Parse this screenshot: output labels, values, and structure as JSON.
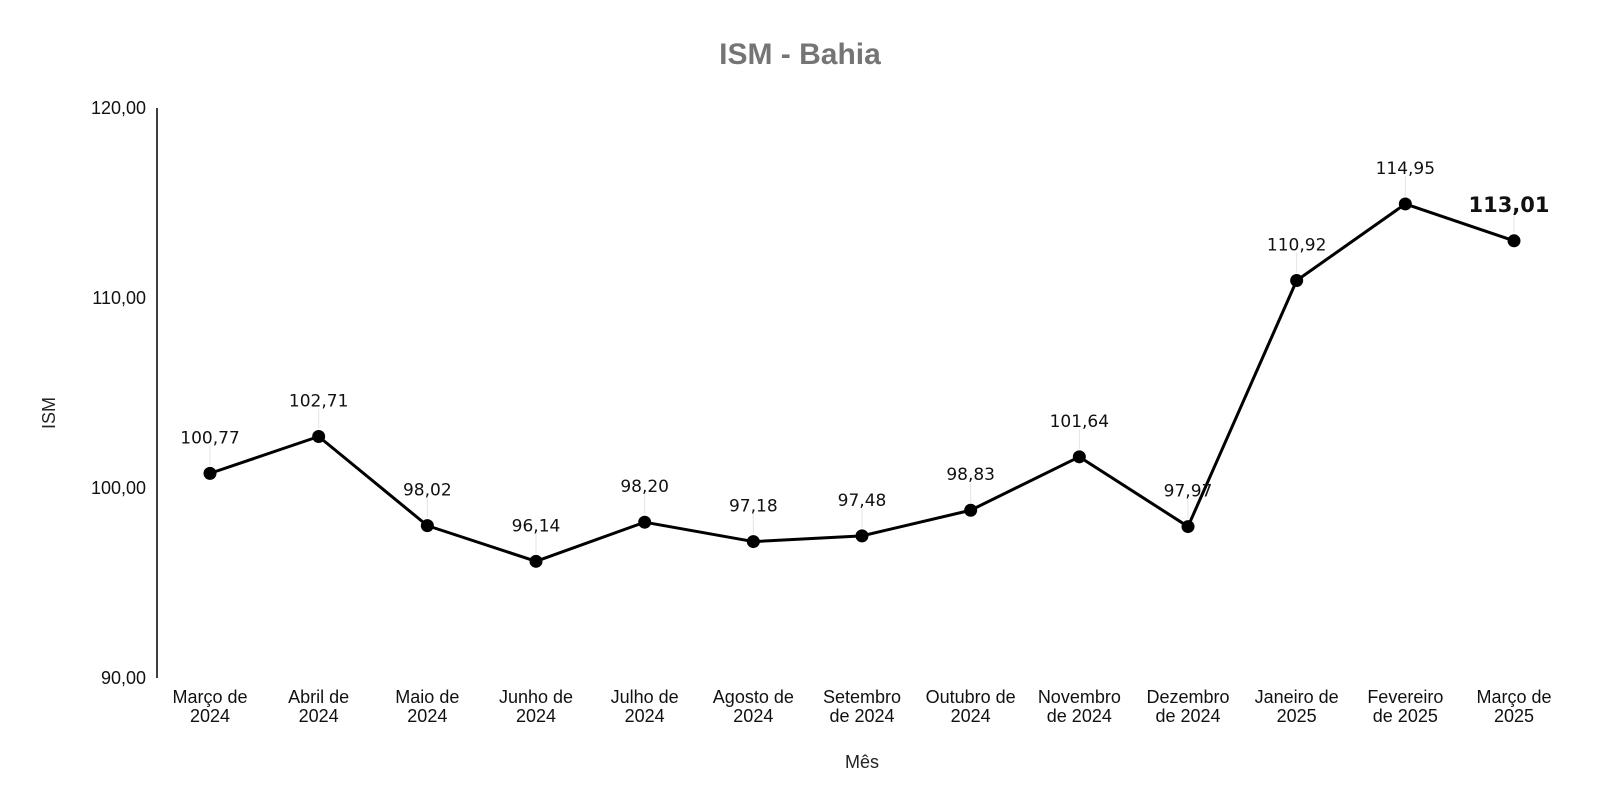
{
  "chart_data": {
    "type": "line",
    "title": "ISM - Bahia",
    "xlabel": "Mês",
    "ylabel": "ISM",
    "ylim": [
      90,
      120
    ],
    "yticks": [
      "120,00",
      "110,00",
      "100,00",
      "90,00"
    ],
    "ytick_values": [
      120,
      110,
      100,
      90
    ],
    "categories": [
      [
        "Março de",
        "2024"
      ],
      [
        "Abril de",
        "2024"
      ],
      [
        "Maio de",
        "2024"
      ],
      [
        "Junho de",
        "2024"
      ],
      [
        "Julho de",
        "2024"
      ],
      [
        "Agosto de",
        "2024"
      ],
      [
        "Setembro",
        "de 2024"
      ],
      [
        "Outubro de",
        "2024"
      ],
      [
        "Novembro",
        "de 2024"
      ],
      [
        "Dezembro",
        "de 2024"
      ],
      [
        "Janeiro de",
        "2025"
      ],
      [
        "Fevereiro",
        "de 2025"
      ],
      [
        "Março de",
        "2025"
      ]
    ],
    "series": [
      {
        "values": [
          100.77,
          102.71,
          98.02,
          96.14,
          98.2,
          97.18,
          97.48,
          98.83,
          101.64,
          97.97,
          110.92,
          114.95,
          113.01
        ],
        "labels": [
          "100,77",
          "102,71",
          "98,02",
          "96,14",
          "98,20",
          "97,18",
          "97,48",
          "98,83",
          "101,64",
          "97,97",
          "110,92",
          "114,95",
          "113,01"
        ],
        "emphasized_index": 12
      }
    ],
    "grid": false,
    "legend": "none",
    "colors": {
      "line": "#000000",
      "marker": "#000000",
      "title": "#757575",
      "axis": "#000000"
    }
  }
}
